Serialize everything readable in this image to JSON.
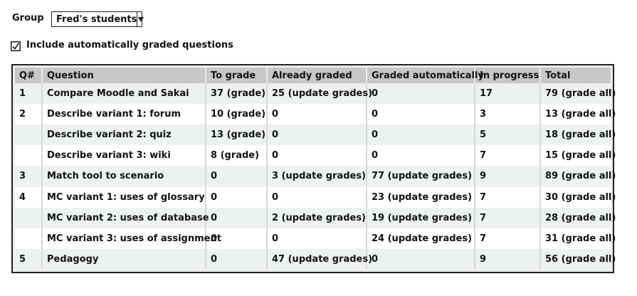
{
  "group": {
    "label": "Group",
    "selected": "Fred's students"
  },
  "auto_graded": {
    "label": "Include automatically graded questions",
    "checked": true
  },
  "table": {
    "headers": [
      "Q#",
      "Question",
      "To grade",
      "Already graded",
      "Graded automatically",
      "In progress",
      "Total"
    ],
    "rows": [
      {
        "qnum": "1",
        "question": "Compare Moodle and Sakai",
        "to_grade": "37 (grade)",
        "already_graded": "25 (update grades)",
        "graded_auto": "0",
        "in_progress": "17",
        "total": "79 (grade all)"
      },
      {
        "qnum": "2",
        "question": "Describe variant 1: forum",
        "to_grade": "10 (grade)",
        "already_graded": "0",
        "graded_auto": "0",
        "in_progress": "3",
        "total": "13 (grade all)"
      },
      {
        "qnum": "",
        "question": "Describe variant 2: quiz",
        "to_grade": "13 (grade)",
        "already_graded": "0",
        "graded_auto": "0",
        "in_progress": "5",
        "total": "18 (grade all)"
      },
      {
        "qnum": "",
        "question": "Describe variant 3: wiki",
        "to_grade": "8 (grade)",
        "already_graded": "0",
        "graded_auto": "0",
        "in_progress": "7",
        "total": "15 (grade all)"
      },
      {
        "qnum": "3",
        "question": "Match tool to scenario",
        "to_grade": "0",
        "already_graded": "3 (update grades)",
        "graded_auto": "77 (update grades)",
        "in_progress": "9",
        "total": "89 (grade all)"
      },
      {
        "qnum": "4",
        "question": "MC variant 1: uses of glossary",
        "to_grade": "0",
        "already_graded": "0",
        "graded_auto": "23 (update grades)",
        "in_progress": "7",
        "total": "30 (grade all)"
      },
      {
        "qnum": "",
        "question": "MC variant 2: uses of database",
        "to_grade": "0",
        "already_graded": "2 (update grades)",
        "graded_auto": "19 (update grades)",
        "in_progress": "7",
        "total": "28 (grade all)"
      },
      {
        "qnum": "",
        "question": "MC variant 3: uses of assignment",
        "to_grade": "0",
        "already_graded": "0",
        "graded_auto": "24 (update grades)",
        "in_progress": "7",
        "total": "31 (grade all)"
      },
      {
        "qnum": "5",
        "question": "Pedagogy",
        "to_grade": "0",
        "already_graded": "47 (update grades)",
        "graded_auto": "0",
        "in_progress": "9",
        "total": "56 (grade all)"
      }
    ]
  }
}
